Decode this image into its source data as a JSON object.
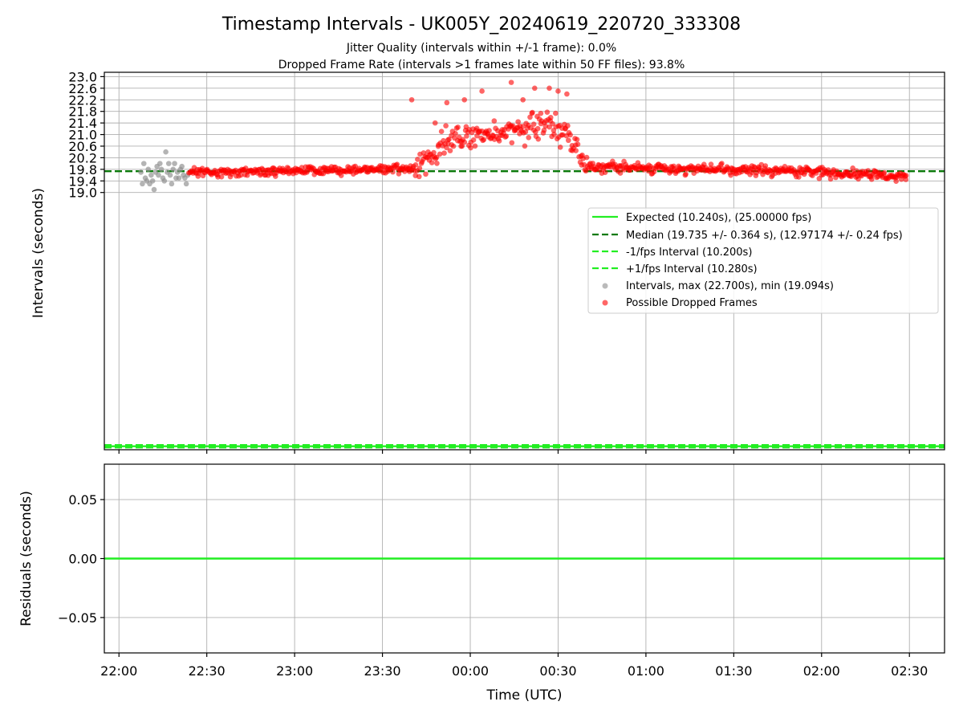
{
  "figure": {
    "title": "Timestamp Intervals - UK005Y_20240619_220720_333308",
    "subtitle_1": "Jitter Quality (intervals within +/-1 frame): 0.0%",
    "subtitle_2": "Dropped Frame Rate (intervals >1 frames late within 50 FF files): 93.8%"
  },
  "chart_data": [
    {
      "type": "scatter",
      "name": "intervals",
      "ylabel": "Intervals (seconds)",
      "xlabel": "",
      "x_unit": "minutes since 22:00 UTC",
      "xlim": [
        -5,
        282
      ],
      "ylim": [
        10.12,
        23.15
      ],
      "ytick_values": [
        19.0,
        19.4,
        19.8,
        20.2,
        20.6,
        21.0,
        21.4,
        21.8,
        22.2,
        22.6,
        23.0
      ],
      "yticks": [
        "19.0",
        "19.4",
        "19.8",
        "20.2",
        "20.6",
        "21.0",
        "21.4",
        "21.8",
        "22.2",
        "22.6",
        "23.0"
      ],
      "xtick_values": [
        0,
        30,
        60,
        90,
        120,
        150,
        180,
        210,
        240,
        270
      ],
      "grid": true,
      "legend_position": "center-right",
      "reference_lines": [
        {
          "key": "expected",
          "label": "Expected (10.240s), (25.00000 fps)",
          "value": 10.24,
          "color": "#22ee22",
          "style": "solid"
        },
        {
          "key": "median",
          "label": "Median (19.735 +/- 0.364 s), (12.97174 +/- 0.24 fps)",
          "value": 19.735,
          "color": "#0a7a0a",
          "style": "dashed"
        },
        {
          "key": "minus_fps",
          "label": "-1/fps Interval (10.200s)",
          "value": 10.2,
          "color": "#22ee22",
          "style": "dashed"
        },
        {
          "key": "plus_fps",
          "label": "+1/fps Interval (10.280s)",
          "value": 10.28,
          "color": "#22ee22",
          "style": "dashed"
        }
      ],
      "series": [
        {
          "key": "intervals",
          "name": "Intervals, max (22.700s), min (19.094s)",
          "color": "#8c8c8c",
          "x": [
            7.5,
            8.0,
            8.5,
            9.0,
            9.5,
            10.0,
            10.5,
            11.0,
            11.5,
            12.0,
            12.5,
            13.0,
            13.5,
            14.0,
            14.5,
            15.0,
            15.5,
            16.0,
            16.5,
            17.0,
            17.5,
            18.0,
            18.5,
            19.0,
            19.5,
            20.0,
            20.5,
            21.0,
            21.5,
            22.0,
            22.5,
            23.0,
            23.5
          ],
          "y": [
            19.7,
            19.3,
            20.0,
            19.5,
            19.4,
            19.8,
            19.3,
            19.6,
            19.4,
            19.1,
            19.7,
            19.9,
            19.6,
            20.0,
            19.8,
            19.5,
            19.4,
            20.4,
            19.7,
            20.0,
            19.6,
            19.3,
            19.8,
            20.0,
            19.5,
            19.7,
            19.5,
            19.8,
            19.9,
            19.6,
            19.5,
            19.3,
            19.6
          ]
        },
        {
          "key": "dropped",
          "name": "Possible Dropped Frames",
          "color": "#ff0000",
          "x": [],
          "y": []
        }
      ],
      "dropped_profile": {
        "x_range": [
          24,
          269
        ],
        "point_count": 820,
        "baseline_segments": [
          {
            "x": [
              24,
              30
            ],
            "y": [
              19.7,
              19.7
            ]
          },
          {
            "x": [
              30,
              60
            ],
            "y": [
              19.7,
              19.75
            ]
          },
          {
            "x": [
              60,
              96
            ],
            "y": [
              19.75,
              19.8
            ]
          },
          {
            "x": [
              96,
              100
            ],
            "y": [
              19.8,
              19.8
            ]
          },
          {
            "x": [
              100,
              106
            ],
            "y": [
              19.8,
              20.2
            ]
          },
          {
            "x": [
              106,
              112
            ],
            "y": [
              20.2,
              20.8
            ]
          },
          {
            "x": [
              112,
              118
            ],
            "y": [
              20.8,
              20.9
            ]
          },
          {
            "x": [
              118,
              128
            ],
            "y": [
              20.9,
              21.0
            ]
          },
          {
            "x": [
              128,
              140
            ],
            "y": [
              21.0,
              21.3
            ]
          },
          {
            "x": [
              140,
              150
            ],
            "y": [
              21.3,
              21.3
            ]
          },
          {
            "x": [
              150,
              156
            ],
            "y": [
              21.3,
              20.6
            ]
          },
          {
            "x": [
              156,
              160
            ],
            "y": [
              20.6,
              19.9
            ]
          },
          {
            "x": [
              160,
              200
            ],
            "y": [
              19.9,
              19.8
            ]
          },
          {
            "x": [
              200,
              230
            ],
            "y": [
              19.8,
              19.75
            ]
          },
          {
            "x": [
              230,
              269
            ],
            "y": [
              19.75,
              19.55
            ]
          }
        ],
        "spread_segments": [
          {
            "x": [
              24,
              100
            ],
            "spread": 0.28
          },
          {
            "x": [
              100,
              160
            ],
            "spread": 0.85
          },
          {
            "x": [
              160,
              269
            ],
            "spread": 0.33
          }
        ],
        "highlighted_outliers": {
          "x": [
            100,
            108,
            112,
            118,
            124,
            134,
            138,
            142,
            147,
            150,
            153
          ],
          "y": [
            22.2,
            21.4,
            22.1,
            22.2,
            22.5,
            22.8,
            22.2,
            22.6,
            22.6,
            22.5,
            22.4
          ]
        }
      }
    },
    {
      "type": "line",
      "name": "residuals",
      "ylabel": "Residuals (seconds)",
      "xlabel": "Time (UTC)",
      "xlim": [
        -5,
        282
      ],
      "ylim": [
        -0.08,
        0.08
      ],
      "ytick_values": [
        -0.05,
        0.0,
        0.05
      ],
      "yticks": [
        "−0.05",
        "0.00",
        "0.05"
      ],
      "xtick_values": [
        0,
        30,
        60,
        90,
        120,
        150,
        180,
        210,
        240,
        270
      ],
      "xticks": [
        "22:00",
        "22:30",
        "23:00",
        "23:30",
        "00:00",
        "00:30",
        "01:00",
        "01:30",
        "02:00",
        "02:30"
      ],
      "grid": true,
      "series": [
        {
          "name": "",
          "x": [
            -5,
            282
          ],
          "y": [
            0,
            0
          ],
          "color": "#22ee22"
        }
      ]
    }
  ]
}
